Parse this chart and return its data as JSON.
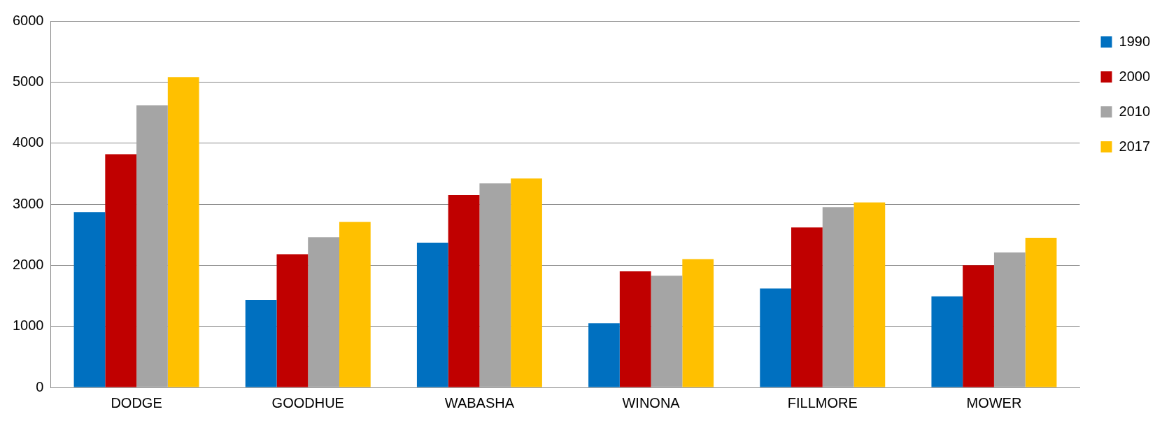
{
  "chart_data": {
    "type": "bar",
    "categories": [
      "DODGE",
      "GOODHUE",
      "WABASHA",
      "WINONA",
      "FILLMORE",
      "MOWER"
    ],
    "series": [
      {
        "name": "1990",
        "color": "#0070c0",
        "values": [
          2870,
          1430,
          2370,
          1050,
          1620,
          1490
        ]
      },
      {
        "name": "2000",
        "color": "#c00000",
        "values": [
          3820,
          2180,
          3150,
          1900,
          2620,
          2000
        ]
      },
      {
        "name": "2010",
        "color": "#a5a5a5",
        "values": [
          4620,
          2460,
          3340,
          1830,
          2950,
          2210
        ]
      },
      {
        "name": "2017",
        "color": "#ffc000",
        "values": [
          5080,
          2710,
          3420,
          2100,
          3030,
          2450
        ]
      }
    ],
    "ylim": [
      0,
      6000
    ],
    "yticks": [
      0,
      1000,
      2000,
      3000,
      4000,
      5000,
      6000
    ],
    "grid": "y",
    "legend": "right"
  }
}
